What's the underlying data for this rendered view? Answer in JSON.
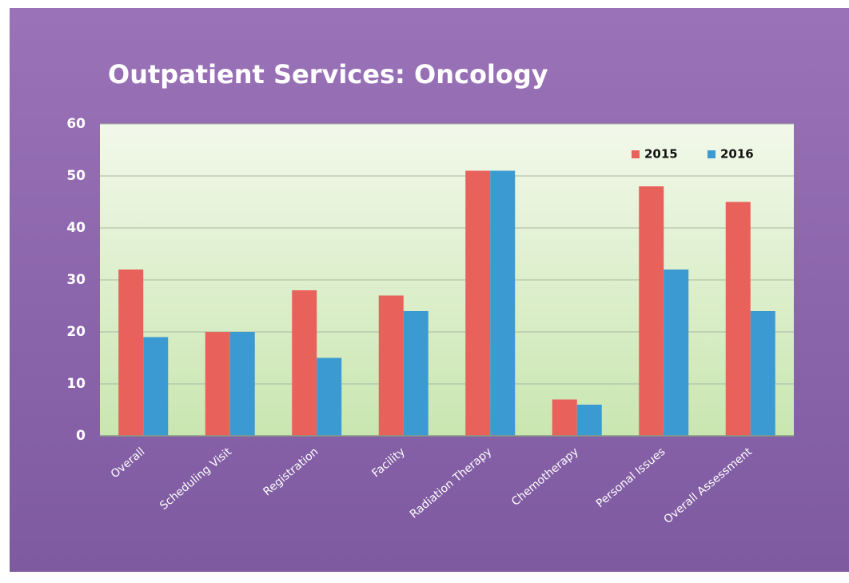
{
  "chart_data": {
    "type": "bar",
    "title": "Outpatient Services: Oncology",
    "categories": [
      "Overall",
      "Scheduling Visit",
      "Registration",
      "Facility",
      "Radiation Therapy",
      "Chemotherapy",
      "Personal Issues",
      "Overall Assessment"
    ],
    "series": [
      {
        "name": "2015",
        "color": "#e8615a",
        "values": [
          32,
          20,
          28,
          27,
          51,
          7,
          48,
          45
        ]
      },
      {
        "name": "2016",
        "color": "#3c9ad2",
        "values": [
          19,
          20,
          15,
          24,
          51,
          6,
          32,
          24
        ]
      }
    ],
    "ylim": [
      0,
      60
    ],
    "yticks": [
      0,
      10,
      20,
      30,
      40,
      50,
      60
    ],
    "grid": true,
    "legend": "top-right"
  }
}
